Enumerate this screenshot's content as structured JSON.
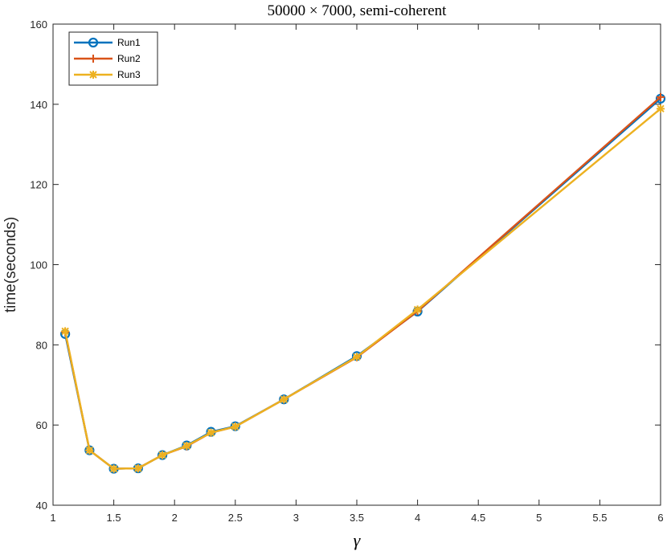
{
  "chart_data": {
    "type": "line",
    "title": "50000 × 7000, semi-coherent",
    "xlabel": "γ",
    "ylabel": "time(seconds)",
    "xlim": [
      1,
      6
    ],
    "ylim": [
      40,
      160
    ],
    "xticks": [
      "1",
      "1.5",
      "2",
      "2.5",
      "3",
      "3.5",
      "4",
      "4.5",
      "5",
      "5.5",
      "6"
    ],
    "yticks": [
      "40",
      "60",
      "80",
      "100",
      "120",
      "140",
      "160"
    ],
    "grid": false,
    "legend_position": "top-left",
    "x": [
      1.1,
      1.3,
      1.5,
      1.7,
      1.9,
      2.1,
      2.3,
      2.5,
      2.9,
      3.5,
      4,
      6
    ],
    "series": [
      {
        "name": "Run1",
        "color": "#0072BD",
        "marker": "circle",
        "values": [
          82.7,
          53.7,
          49.1,
          49.2,
          52.5,
          54.9,
          58.3,
          59.7,
          66.4,
          77.2,
          88.3,
          141.4
        ]
      },
      {
        "name": "Run2",
        "color": "#D95319",
        "marker": "plus",
        "values": [
          83.2,
          53.7,
          49.1,
          49.2,
          52.5,
          54.7,
          58.1,
          59.6,
          66.4,
          76.9,
          88.4,
          141.8
        ]
      },
      {
        "name": "Run3",
        "color": "#EDB120",
        "marker": "asterisk",
        "values": [
          83.4,
          53.7,
          49.1,
          49.2,
          52.5,
          54.8,
          58.1,
          59.6,
          66.4,
          77.0,
          88.8,
          138.9
        ]
      }
    ]
  }
}
